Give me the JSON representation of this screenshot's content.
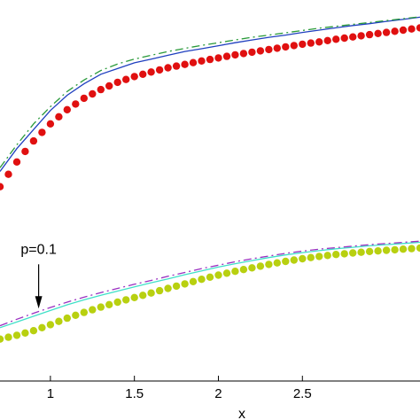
{
  "chart_data": {
    "type": "line",
    "xlabel": "x",
    "ylabel": "",
    "title": "",
    "xlim": [
      0.7,
      3.2
    ],
    "ylim": [
      0,
      1
    ],
    "grid": false,
    "x_ticks": [
      {
        "value": 1,
        "label": "1"
      },
      {
        "value": 1.5,
        "label": "1.5"
      },
      {
        "value": 2,
        "label": "2"
      },
      {
        "value": 2.5,
        "label": "2.5"
      }
    ],
    "series": [
      {
        "style": "solid",
        "color": "#1f3fbf",
        "x": [
          0.7,
          0.8,
          0.9,
          1.0,
          1.1,
          1.2,
          1.3,
          1.4,
          1.5,
          1.6,
          1.7,
          1.8,
          1.9,
          2.0,
          2.1,
          2.2,
          2.3,
          2.4,
          2.5,
          2.6,
          2.7,
          2.8,
          2.9,
          3.0,
          3.1,
          3.2
        ],
        "y": [
          0.55,
          0.61,
          0.66,
          0.71,
          0.75,
          0.78,
          0.805,
          0.82,
          0.835,
          0.845,
          0.855,
          0.865,
          0.872,
          0.88,
          0.888,
          0.895,
          0.902,
          0.908,
          0.915,
          0.921,
          0.927,
          0.933,
          0.938,
          0.944,
          0.949,
          0.955
        ]
      },
      {
        "style": "dashdot",
        "color": "#2a9a3a",
        "x": [
          0.7,
          0.8,
          0.9,
          1.0,
          1.1,
          1.2,
          1.3,
          1.4,
          1.5,
          1.6,
          1.7,
          1.8,
          1.9,
          2.0,
          2.1,
          2.2,
          2.3,
          2.4,
          2.5,
          2.6,
          2.7,
          2.8,
          2.9,
          3.0,
          3.1,
          3.2
        ],
        "y": [
          0.56,
          0.62,
          0.675,
          0.72,
          0.76,
          0.79,
          0.815,
          0.832,
          0.845,
          0.855,
          0.865,
          0.873,
          0.881,
          0.888,
          0.895,
          0.902,
          0.908,
          0.914,
          0.92,
          0.926,
          0.931,
          0.936,
          0.941,
          0.946,
          0.951,
          0.956
        ]
      },
      {
        "style": "dots",
        "color": "#e01010",
        "x": [
          0.7,
          0.8,
          0.9,
          1.0,
          1.1,
          1.2,
          1.3,
          1.4,
          1.5,
          1.6,
          1.7,
          1.8,
          1.9,
          2.0,
          2.1,
          2.2,
          2.3,
          2.4,
          2.5,
          2.6,
          2.7,
          2.8,
          2.9,
          3.0,
          3.1,
          3.2
        ],
        "y": [
          0.51,
          0.575,
          0.63,
          0.675,
          0.712,
          0.742,
          0.765,
          0.784,
          0.799,
          0.811,
          0.822,
          0.831,
          0.84,
          0.848,
          0.856,
          0.863,
          0.87,
          0.877,
          0.884,
          0.89,
          0.897,
          0.903,
          0.909,
          0.915,
          0.921,
          0.927
        ]
      },
      {
        "style": "solid",
        "color": "#40e0c8",
        "x": [
          0.7,
          0.8,
          0.9,
          1.0,
          1.1,
          1.2,
          1.3,
          1.4,
          1.5,
          1.6,
          1.7,
          1.8,
          1.9,
          2.0,
          2.1,
          2.2,
          2.3,
          2.4,
          2.5,
          2.6,
          2.7,
          2.8,
          2.9,
          3.0,
          3.1,
          3.2
        ],
        "y": [
          0.14,
          0.155,
          0.17,
          0.185,
          0.2,
          0.213,
          0.225,
          0.236,
          0.247,
          0.258,
          0.268,
          0.279,
          0.289,
          0.299,
          0.308,
          0.316,
          0.324,
          0.331,
          0.337,
          0.342,
          0.347,
          0.351,
          0.355,
          0.358,
          0.361,
          0.364
        ]
      },
      {
        "style": "dashdot",
        "color": "#9a30c0",
        "x": [
          0.7,
          0.8,
          0.9,
          1.0,
          1.1,
          1.2,
          1.3,
          1.4,
          1.5,
          1.6,
          1.7,
          1.8,
          1.9,
          2.0,
          2.1,
          2.2,
          2.3,
          2.4,
          2.5,
          2.6,
          2.7,
          2.8,
          2.9,
          3.0,
          3.1,
          3.2
        ],
        "y": [
          0.145,
          0.162,
          0.178,
          0.193,
          0.207,
          0.22,
          0.232,
          0.243,
          0.254,
          0.264,
          0.275,
          0.285,
          0.295,
          0.304,
          0.313,
          0.321,
          0.328,
          0.335,
          0.341,
          0.346,
          0.35,
          0.354,
          0.358,
          0.361,
          0.364,
          0.367
        ]
      },
      {
        "style": "dots",
        "color": "#b8d010",
        "x": [
          0.7,
          0.8,
          0.9,
          1.0,
          1.1,
          1.2,
          1.3,
          1.4,
          1.5,
          1.6,
          1.7,
          1.8,
          1.9,
          2.0,
          2.1,
          2.2,
          2.3,
          2.4,
          2.5,
          2.6,
          2.7,
          2.8,
          2.9,
          3.0,
          3.1,
          3.2
        ],
        "y": [
          0.11,
          0.12,
          0.132,
          0.148,
          0.165,
          0.18,
          0.194,
          0.207,
          0.219,
          0.231,
          0.243,
          0.255,
          0.267,
          0.278,
          0.288,
          0.297,
          0.306,
          0.314,
          0.321,
          0.327,
          0.332,
          0.336,
          0.34,
          0.343,
          0.346,
          0.349
        ]
      }
    ],
    "annotations": [
      {
        "text": "p=0.1",
        "x": 0.93,
        "y": 0.19
      }
    ]
  }
}
